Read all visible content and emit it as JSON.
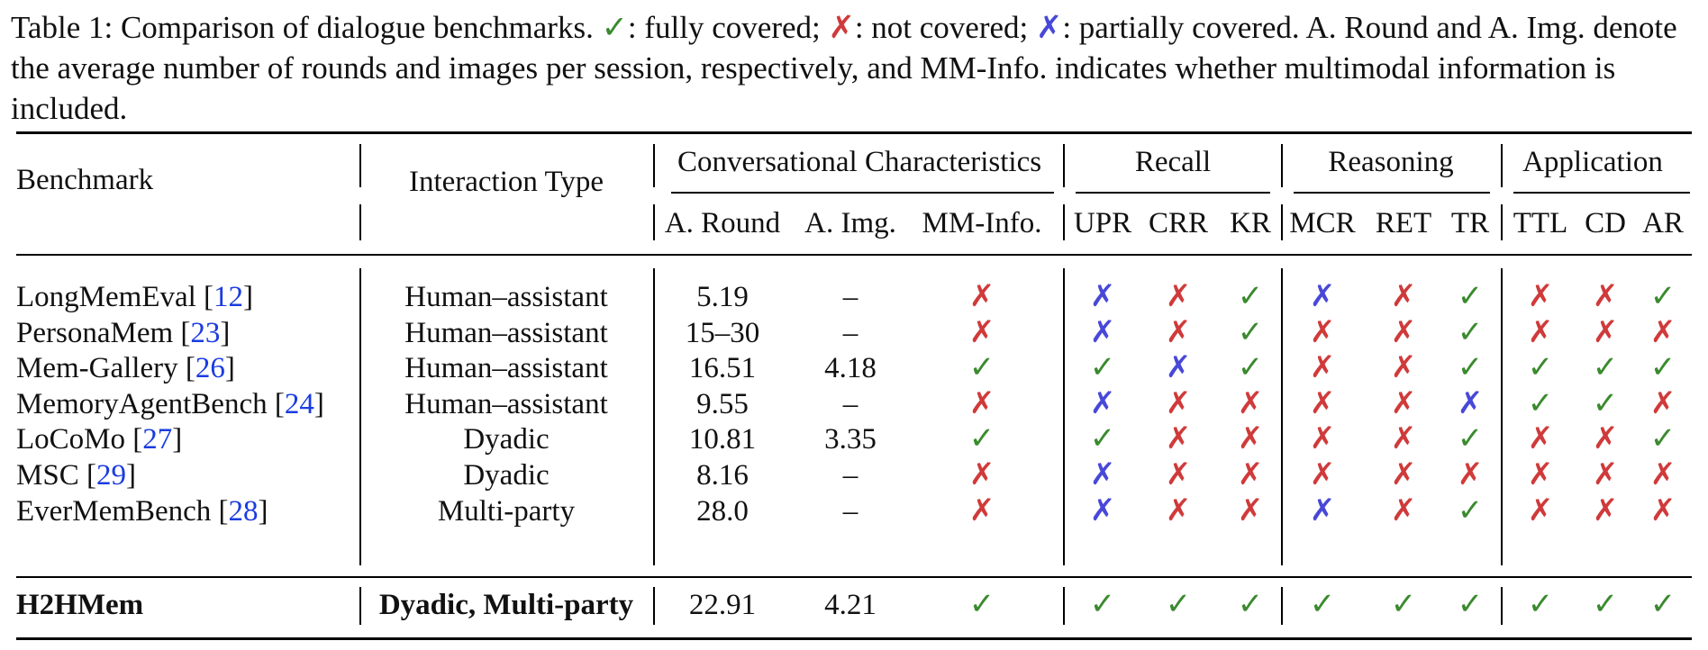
{
  "caption": {
    "label": "Table 1:",
    "intro": "Comparison of dialogue benchmarks.",
    "full_mark": "✓",
    "full_text": ": fully covered;",
    "not_mark": "✗",
    "not_text": ": not covered;",
    "partial_mark": "✗",
    "partial_text": ": partially covered. A. Round and A. Img. denote the average number of rounds and images per session, respectively, and MM-Info. indicates whether multimodal information is included."
  },
  "colors": {
    "full": "#3a8a2e",
    "not": "#d03a3a",
    "partial": "#4848d8",
    "ref": "#1a3ce0"
  },
  "header": {
    "benchmark": "Benchmark",
    "interaction": "Interaction Type",
    "groups": [
      "Conversational Characteristics",
      "Recall",
      "Reasoning",
      "Application"
    ],
    "subcols": [
      "A. Round",
      "A. Img.",
      "MM-Info.",
      "UPR",
      "CRR",
      "KR",
      "MCR",
      "RET",
      "TR",
      "TTL",
      "CD",
      "AR"
    ]
  },
  "rows": [
    {
      "name": "LongMemEval",
      "ref": "12",
      "type": "Human–assistant",
      "round": "5.19",
      "img": "–",
      "marks": [
        "x",
        "p",
        "x",
        "c",
        "p",
        "x",
        "c",
        "x",
        "x",
        "c"
      ]
    },
    {
      "name": "PersonaMem",
      "ref": "23",
      "type": "Human–assistant",
      "round": "15–30",
      "img": "–",
      "marks": [
        "x",
        "p",
        "x",
        "c",
        "x",
        "x",
        "c",
        "x",
        "x",
        "x"
      ]
    },
    {
      "name": "Mem-Gallery",
      "ref": "26",
      "type": "Human–assistant",
      "round": "16.51",
      "img": "4.18",
      "marks": [
        "c",
        "c",
        "p",
        "c",
        "x",
        "x",
        "c",
        "c",
        "c",
        "c"
      ]
    },
    {
      "name": "MemoryAgentBench",
      "ref": "24",
      "type": "Human–assistant",
      "round": "9.55",
      "img": "–",
      "marks": [
        "x",
        "p",
        "x",
        "x",
        "x",
        "x",
        "p",
        "c",
        "c",
        "x"
      ]
    },
    {
      "name": "LoCoMo",
      "ref": "27",
      "type": "Dyadic",
      "round": "10.81",
      "img": "3.35",
      "marks": [
        "c",
        "c",
        "x",
        "x",
        "x",
        "x",
        "c",
        "x",
        "x",
        "c"
      ]
    },
    {
      "name": "MSC",
      "ref": "29",
      "type": "Dyadic",
      "round": "8.16",
      "img": "–",
      "marks": [
        "x",
        "p",
        "x",
        "x",
        "x",
        "x",
        "x",
        "x",
        "x",
        "x"
      ]
    },
    {
      "name": "EverMemBench",
      "ref": "28",
      "type": "Multi-party",
      "round": "28.0",
      "img": "–",
      "marks": [
        "x",
        "p",
        "x",
        "x",
        "p",
        "x",
        "c",
        "x",
        "x",
        "x"
      ]
    }
  ],
  "ours": {
    "name": "H2HMem",
    "type": "Dyadic, Multi-party",
    "round": "22.91",
    "img": "4.21",
    "marks": [
      "c",
      "c",
      "c",
      "c",
      "c",
      "c",
      "c",
      "c",
      "c",
      "c"
    ]
  },
  "mark_glyphs": {
    "c": "✓",
    "x": "✗",
    "p": "✗"
  }
}
